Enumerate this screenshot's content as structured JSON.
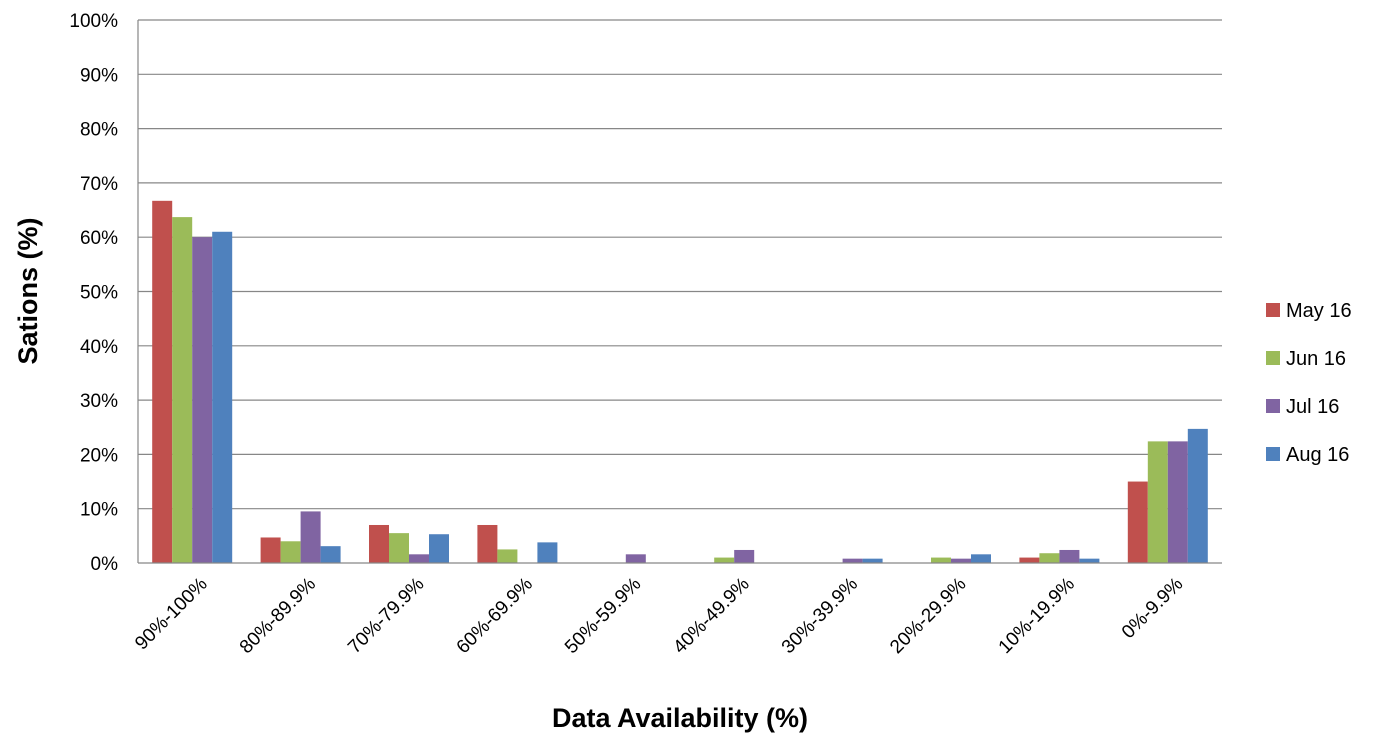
{
  "chart_data": {
    "type": "bar",
    "title": "",
    "xlabel": "Data Availability (%)",
    "ylabel": "Sations (%)",
    "categories": [
      "90%-100%",
      "80%-89.9%",
      "70%-79.9%",
      "60%-69.9%",
      "50%-59.9%",
      "40%-49.9%",
      "30%-39.9%",
      "20%-29.9%",
      "10%-19.9%",
      "0%-9.9%"
    ],
    "series": [
      {
        "name": "May 16",
        "color": "#C0504D",
        "values": [
          66.7,
          4.7,
          7.0,
          7.0,
          0,
          0,
          0,
          0,
          1.0,
          15.0
        ]
      },
      {
        "name": "Jun 16",
        "color": "#9BBB59",
        "values": [
          63.7,
          4.0,
          5.5,
          2.5,
          0,
          1.0,
          0,
          1.0,
          1.8,
          22.4
        ]
      },
      {
        "name": "Jul 16",
        "color": "#8064A2",
        "values": [
          60.0,
          9.5,
          1.6,
          0,
          1.6,
          2.4,
          0.8,
          0.8,
          2.4,
          22.4
        ]
      },
      {
        "name": "Aug 16",
        "color": "#4F81BD",
        "values": [
          61.0,
          3.1,
          5.3,
          3.8,
          0,
          0,
          0.8,
          1.6,
          0.8,
          24.7
        ]
      }
    ],
    "yticks": [
      "0%",
      "10%",
      "20%",
      "30%",
      "40%",
      "50%",
      "60%",
      "70%",
      "80%",
      "90%",
      "100%"
    ],
    "ylim": [
      0,
      100
    ],
    "grid": true,
    "legend_position": "right"
  }
}
